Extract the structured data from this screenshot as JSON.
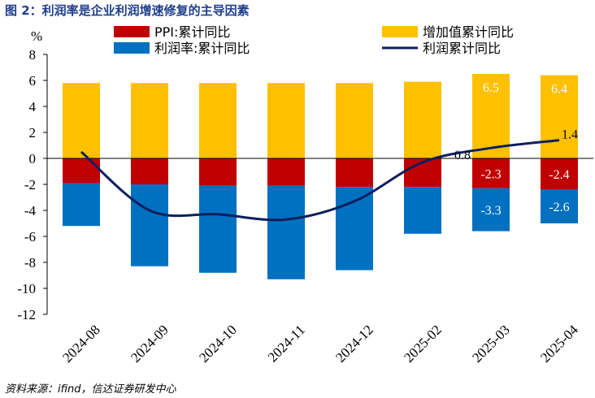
{
  "header": {
    "title": "图 2：利润率是企业利润增速修复的主导因素"
  },
  "footer": {
    "source": "资料来源：ifind，信达证券研发中心"
  },
  "chart_data": {
    "type": "bar",
    "ylabel": "%",
    "ylim": [
      -12,
      8
    ],
    "yticks": [
      8,
      6,
      4,
      2,
      0,
      -2,
      -4,
      -6,
      -8,
      -10,
      -12
    ],
    "categories": [
      "2024-08",
      "2024-09",
      "2024-10",
      "2024-11",
      "2024-12",
      "2025-02",
      "2025-03",
      "2025-04"
    ],
    "legend_position": "top",
    "series": [
      {
        "name": "PPI:累计同比",
        "type": "bar",
        "color": "#c00000",
        "values": [
          -1.9,
          -2.0,
          -2.1,
          -2.1,
          -2.2,
          -2.2,
          -2.3,
          -2.4
        ]
      },
      {
        "name": "增加值累计同比",
        "type": "bar",
        "color": "#ffc000",
        "values": [
          5.8,
          5.8,
          5.8,
          5.8,
          5.8,
          5.9,
          6.5,
          6.4
        ]
      },
      {
        "name": "利润率:累计同比",
        "type": "bar",
        "color": "#0070c0",
        "values": [
          -3.3,
          -6.3,
          -6.7,
          -7.2,
          -6.4,
          -3.6,
          -3.3,
          -2.6
        ]
      },
      {
        "name": "利润累计同比",
        "type": "line",
        "color": "#0d1f5c",
        "values": [
          0.5,
          -4.0,
          -4.3,
          -4.7,
          -3.3,
          -0.3,
          0.8,
          1.4
        ]
      }
    ],
    "data_labels": [
      {
        "series": "增加值累计同比",
        "index": 6,
        "text": "6.5",
        "color": "#ffffff"
      },
      {
        "series": "增加值累计同比",
        "index": 7,
        "text": "6.4",
        "color": "#ffffff"
      },
      {
        "series": "PPI:累计同比",
        "index": 6,
        "text": "-2.3",
        "color": "#ffffff"
      },
      {
        "series": "PPI:累计同比",
        "index": 7,
        "text": "-2.4",
        "color": "#ffffff"
      },
      {
        "series": "利润率:累计同比",
        "index": 6,
        "text": "-3.3",
        "color": "#ffffff"
      },
      {
        "series": "利润率:累计同比",
        "index": 7,
        "text": "-2.6",
        "color": "#ffffff"
      },
      {
        "series": "利润累计同比",
        "index": 6,
        "text": "0.8",
        "color": "#000000"
      },
      {
        "series": "利润累计同比",
        "index": 7,
        "text": "1.4",
        "color": "#000000"
      }
    ]
  }
}
